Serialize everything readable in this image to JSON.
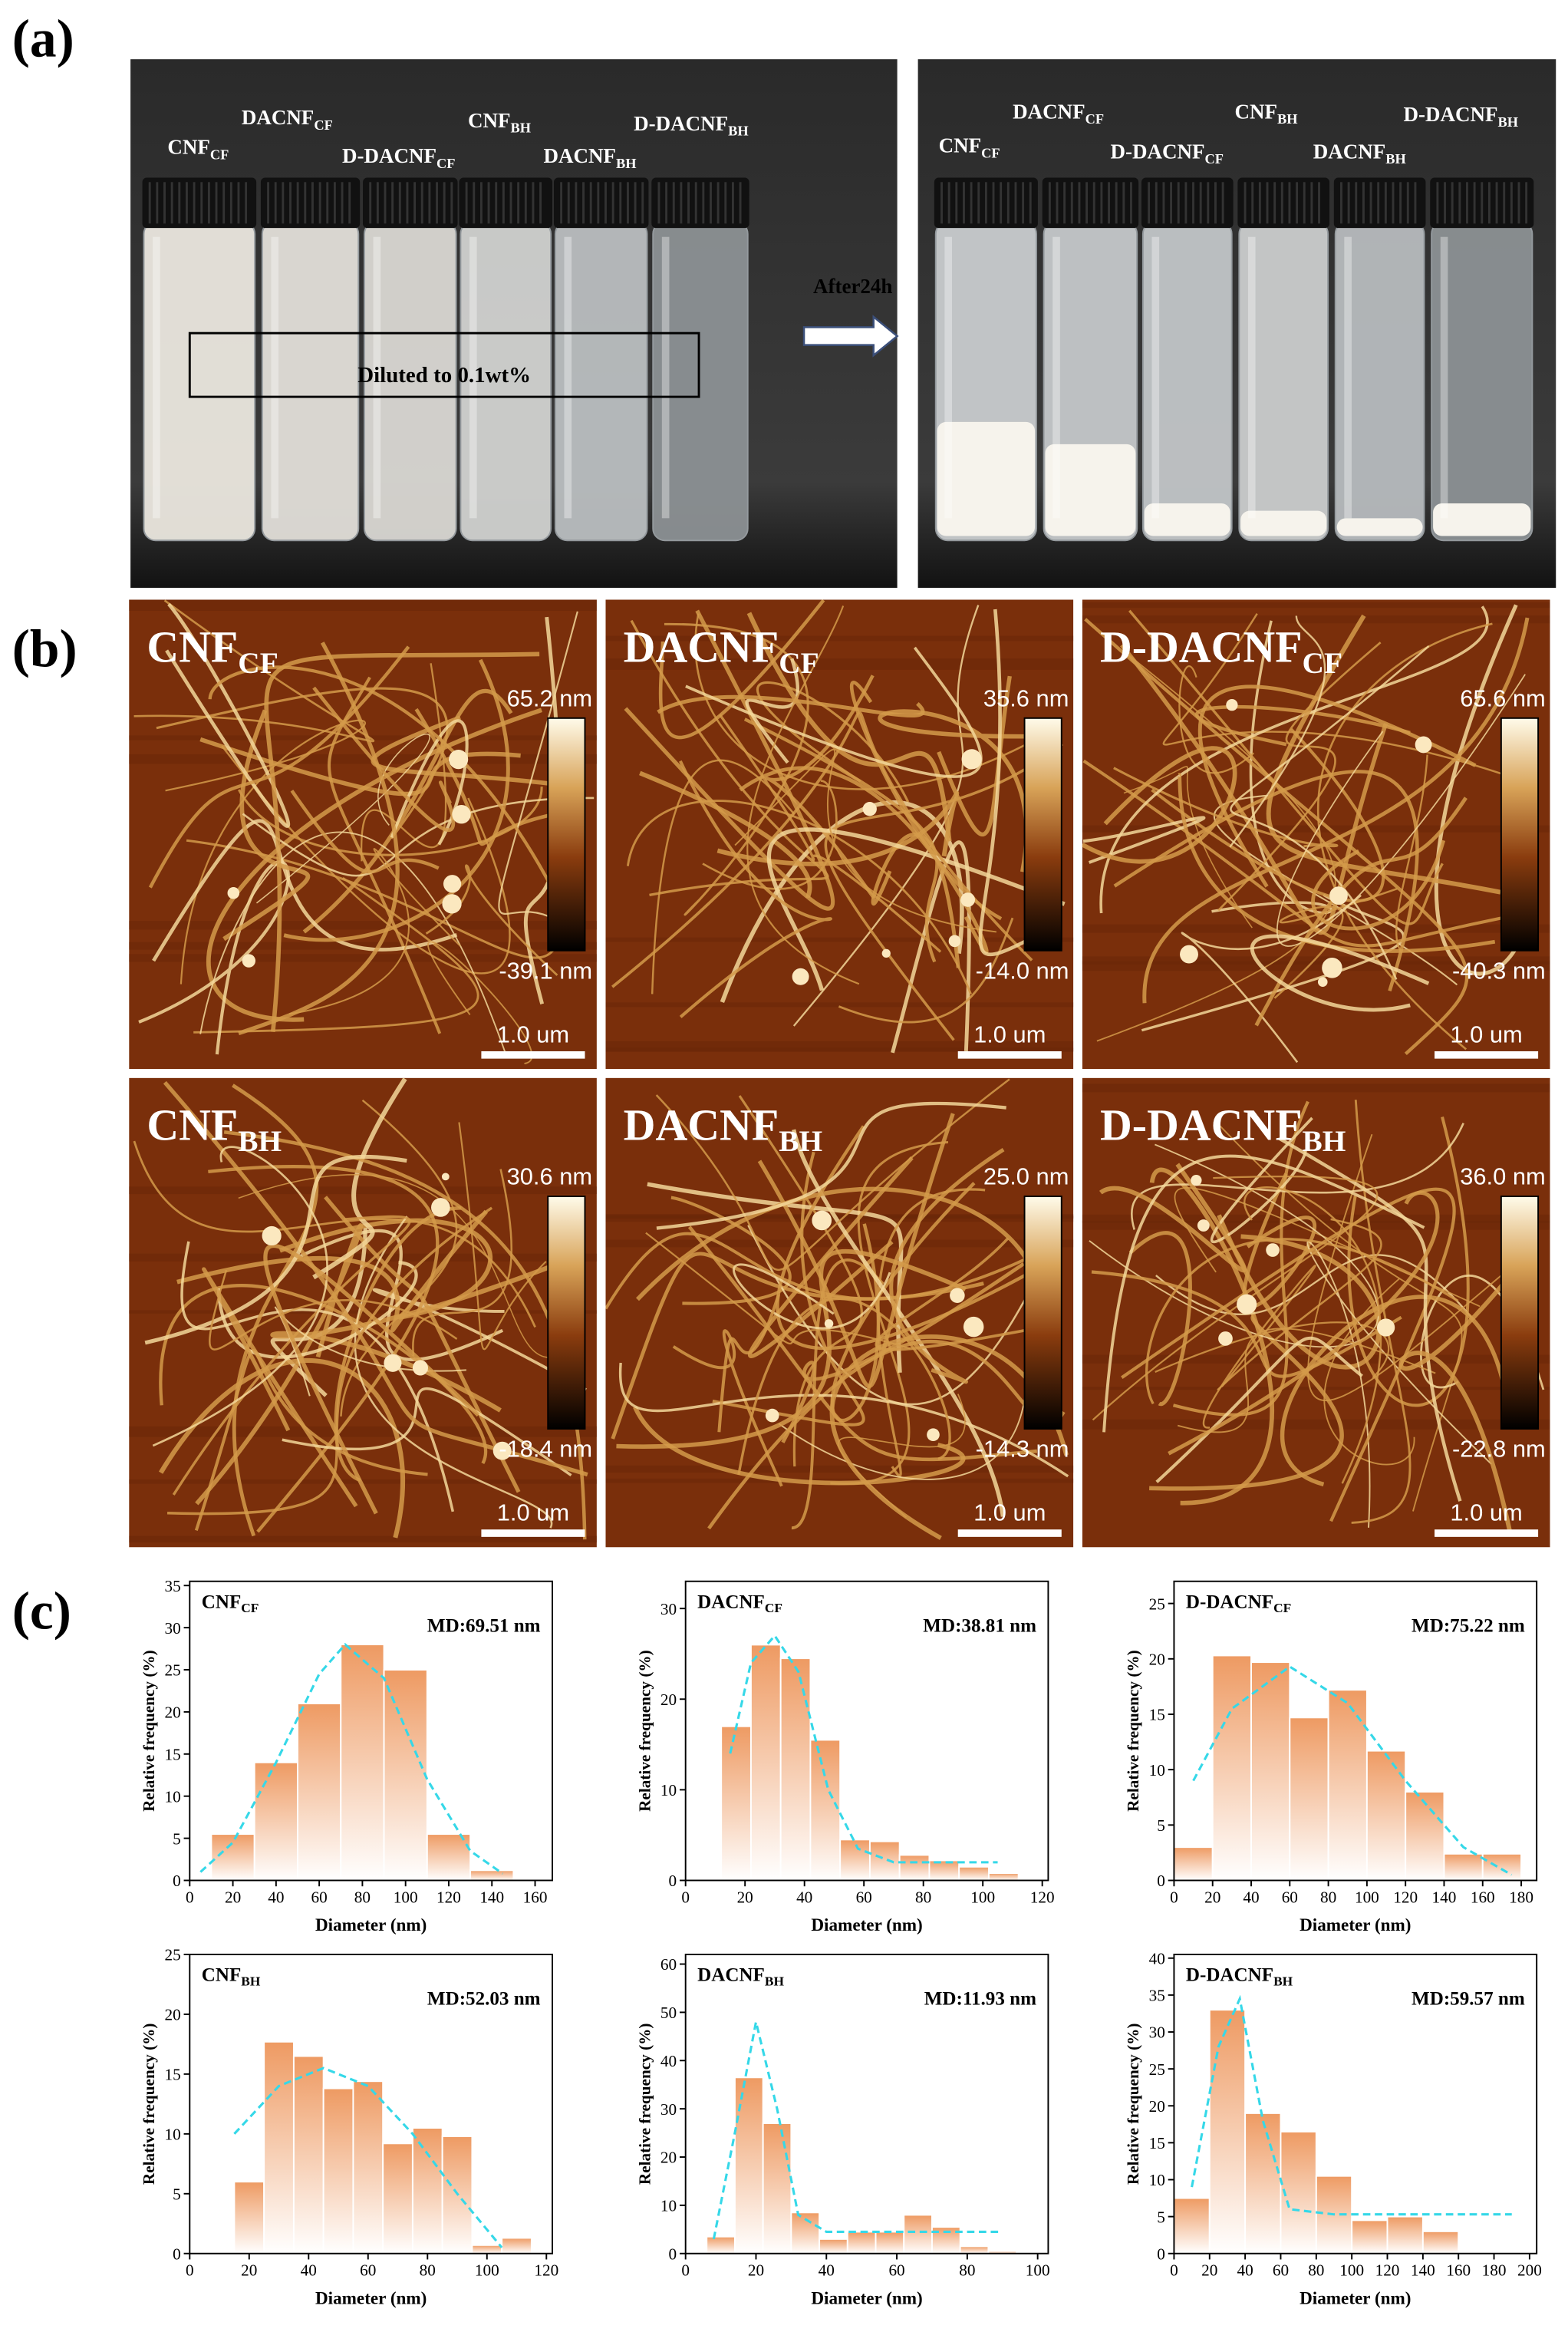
{
  "panel_a": {
    "label": "(a)",
    "before_labels": [
      {
        "text": "CNF",
        "sub": "CF"
      },
      {
        "text": "DACNF",
        "sub": "CF"
      },
      {
        "text": "D-DACNF",
        "sub": "CF"
      },
      {
        "text": "CNF",
        "sub": "BH"
      },
      {
        "text": "DACNF",
        "sub": "BH"
      },
      {
        "text": "D-DACNF",
        "sub": "BH"
      }
    ],
    "diluted": "Diluted to 0.1wt%",
    "arrow_label": "After24h",
    "after_labels": [
      {
        "text": "CNF",
        "sub": "CF"
      },
      {
        "text": "DACNF",
        "sub": "CF"
      },
      {
        "text": "D-DACNF",
        "sub": "CF"
      },
      {
        "text": "CNF",
        "sub": "BH"
      },
      {
        "text": "DACNF",
        "sub": "BH"
      },
      {
        "text": "D-DACNF",
        "sub": "BH"
      }
    ]
  },
  "panel_b": {
    "label": "(b)",
    "images": [
      {
        "name": {
          "text": "CNF",
          "sub": "CF"
        },
        "max": "65.2 nm",
        "min": "-39.1 nm",
        "scale": "1.0 um"
      },
      {
        "name": {
          "text": "DACNF",
          "sub": "CF"
        },
        "max": "35.6 nm",
        "min": "-14.0 nm",
        "scale": "1.0 um"
      },
      {
        "name": {
          "text": "D-DACNF",
          "sub": "CF"
        },
        "max": "65.6 nm",
        "min": "-40.3 nm",
        "scale": "1.0 um"
      },
      {
        "name": {
          "text": "CNF",
          "sub": "BH"
        },
        "max": "30.6 nm",
        "min": "-18.4 nm",
        "scale": "1.0 um"
      },
      {
        "name": {
          "text": "DACNF",
          "sub": "BH"
        },
        "max": "25.0 nm",
        "min": "-14.3 nm",
        "scale": "1.0 um"
      },
      {
        "name": {
          "text": "D-DACNF",
          "sub": "BH"
        },
        "max": "36.0 nm",
        "min": "-22.8 nm",
        "scale": "1.0 um"
      }
    ]
  },
  "panel_c": {
    "label": "(c)"
  },
  "chart_data": [
    {
      "type": "histogram",
      "title": "CNF",
      "title_sub": "CF",
      "annotation": "MD:69.51 nm",
      "x_label": "Diameter (nm)",
      "y_label": "Relative frequency (%)",
      "bins": [
        10,
        30,
        50,
        70,
        90,
        110,
        130,
        150
      ],
      "values": [
        5.5,
        14,
        21,
        28,
        25,
        5.5,
        1.2
      ],
      "color": "#ee9a62",
      "fit": {
        "color": "#35d8e8",
        "x": [
          5,
          20,
          40,
          60,
          72,
          90,
          110,
          130,
          145
        ],
        "values": [
          1,
          4.5,
          14,
          24.5,
          28,
          24,
          12,
          3.5,
          0.8
        ]
      },
      "xlim": [
        0,
        168
      ],
      "ylim": [
        0,
        35.5
      ],
      "xticks": [
        0,
        20,
        40,
        60,
        80,
        100,
        120,
        140,
        160
      ],
      "yticks": [
        0,
        5,
        10,
        15,
        20,
        25,
        30,
        35
      ]
    },
    {
      "type": "histogram",
      "title": "DACNF",
      "title_sub": "CF",
      "annotation": "MD:38.81 nm",
      "x_label": "Diameter (nm)",
      "y_label": "Relative frequency (%)",
      "bins": [
        12,
        22,
        32,
        42,
        52,
        62,
        72,
        82,
        92,
        102,
        112
      ],
      "values": [
        17,
        26,
        24.5,
        15.5,
        4.5,
        4.3,
        2.8,
        2.2,
        1.5,
        0.8
      ],
      "color": "#ee9a62",
      "fit": {
        "color": "#35d8e8",
        "x": [
          15,
          22,
          30,
          38,
          48,
          58,
          70,
          85,
          105
        ],
        "values": [
          14,
          24,
          27,
          23,
          10,
          3.5,
          2,
          2,
          2
        ]
      },
      "xlim": [
        0,
        122
      ],
      "ylim": [
        0,
        33
      ],
      "xticks": [
        0,
        20,
        40,
        60,
        80,
        100,
        120
      ],
      "yticks": [
        0,
        10,
        20,
        30
      ]
    },
    {
      "type": "histogram",
      "title": "D-DACNF",
      "title_sub": "CF",
      "annotation": "MD:75.22 nm",
      "x_label": "Diameter (nm)",
      "y_label": "Relative frequency (%)",
      "bins": [
        0,
        20,
        40,
        60,
        80,
        100,
        120,
        140,
        160,
        180
      ],
      "values": [
        3,
        20.3,
        19.7,
        14.7,
        17.2,
        11.7,
        8,
        2.4,
        2.4
      ],
      "color": "#ee9a62",
      "fit": {
        "color": "#35d8e8",
        "x": [
          10,
          30,
          60,
          90,
          120,
          150,
          175
        ],
        "values": [
          9,
          15.5,
          19.3,
          16,
          9,
          3,
          0.5
        ]
      },
      "xlim": [
        0,
        188
      ],
      "ylim": [
        0,
        27
      ],
      "xticks": [
        0,
        20,
        40,
        60,
        80,
        100,
        120,
        140,
        160,
        180
      ],
      "yticks": [
        0,
        5,
        10,
        15,
        20,
        25
      ]
    },
    {
      "type": "histogram",
      "title": "CNF",
      "title_sub": "BH",
      "annotation": "MD:52.03 nm",
      "x_label": "Diameter (nm)",
      "y_label": "Relative frequency (%)",
      "bins": [
        15,
        25,
        35,
        45,
        55,
        65,
        75,
        85,
        95,
        105,
        115
      ],
      "values": [
        6,
        17.7,
        16.5,
        13.8,
        14.4,
        9.2,
        10.5,
        9.8,
        0.7,
        1.3
      ],
      "color": "#ee9a62",
      "fit": {
        "color": "#35d8e8",
        "x": [
          15,
          30,
          45,
          60,
          75,
          90,
          105
        ],
        "values": [
          10,
          14,
          15.5,
          14,
          10,
          5,
          0.5
        ]
      },
      "xlim": [
        0,
        122
      ],
      "ylim": [
        0,
        25
      ],
      "xticks": [
        0,
        20,
        40,
        60,
        80,
        100,
        120
      ],
      "yticks": [
        0,
        5,
        10,
        15,
        20,
        25
      ]
    },
    {
      "type": "histogram",
      "title": "DACNF",
      "title_sub": "BH",
      "annotation": "MD:11.93 nm",
      "x_label": "Diameter (nm)",
      "y_label": "Relative frequency (%)",
      "bins": [
        6,
        14,
        22,
        30,
        38,
        46,
        54,
        62,
        70,
        78,
        86,
        94
      ],
      "values": [
        3.5,
        36.5,
        27,
        8.5,
        3,
        4.5,
        4.5,
        8,
        5.5,
        1.5,
        0.5
      ],
      "color": "#ee9a62",
      "fit": {
        "color": "#35d8e8",
        "x": [
          8,
          14,
          20,
          26,
          32,
          40,
          60,
          90
        ],
        "values": [
          3,
          25,
          48,
          30,
          8,
          4.5,
          4.5,
          4.5
        ]
      },
      "xlim": [
        0,
        103
      ],
      "ylim": [
        0,
        62
      ],
      "xticks": [
        0,
        20,
        40,
        60,
        80,
        100
      ],
      "yticks": [
        0,
        10,
        20,
        30,
        40,
        50,
        60
      ]
    },
    {
      "type": "histogram",
      "title": "D-DACNF",
      "title_sub": "BH",
      "annotation": "MD:59.57 nm",
      "x_label": "Diameter (nm)",
      "y_label": "Relative frequency (%)",
      "bins": [
        0,
        20,
        40,
        60,
        80,
        100,
        120,
        140,
        160
      ],
      "values": [
        7.5,
        33,
        19,
        16.5,
        10.5,
        4.5,
        5,
        3
      ],
      "color": "#ee9a62",
      "fit": {
        "color": "#35d8e8",
        "x": [
          10,
          25,
          37,
          50,
          65,
          90,
          190
        ],
        "values": [
          9,
          28,
          34.5,
          18,
          6,
          5.3,
          5.3
        ]
      },
      "xlim": [
        0,
        204
      ],
      "ylim": [
        0,
        40.5
      ],
      "xticks": [
        0,
        20,
        40,
        60,
        80,
        100,
        120,
        140,
        160,
        180,
        200
      ],
      "yticks": [
        0,
        5,
        10,
        15,
        20,
        25,
        30,
        35,
        40
      ]
    }
  ]
}
